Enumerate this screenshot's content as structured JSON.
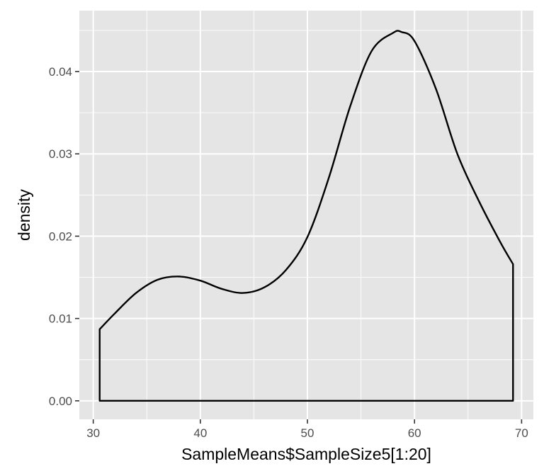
{
  "chart_data": {
    "type": "area",
    "geom": "density",
    "xlabel": "SampleMeans$SampleSize5[1:20]",
    "ylabel": "density",
    "xlim": [
      28.7,
      71.1
    ],
    "ylim": [
      -0.00225,
      0.0474
    ],
    "x_ticks": [
      30,
      40,
      50,
      60,
      70
    ],
    "x_tick_labels": [
      "30",
      "40",
      "50",
      "60",
      "70"
    ],
    "y_ticks": [
      0.0,
      0.01,
      0.02,
      0.03,
      0.04
    ],
    "y_tick_labels": [
      "0.00",
      "0.01",
      "0.02",
      "0.03",
      "0.04"
    ],
    "grid": true,
    "panel_background": "#e5e5e5",
    "grid_color": "#ffffff",
    "line_color": "#000000",
    "fill": "none",
    "series": [
      {
        "x": [
          30.6,
          32,
          34,
          36,
          38,
          40,
          42,
          44,
          46,
          48,
          50,
          52,
          54,
          56,
          58,
          58.8,
          60,
          62,
          64,
          66,
          68,
          69.2
        ],
        "y": [
          0.0087,
          0.0106,
          0.0131,
          0.0147,
          0.0151,
          0.0146,
          0.0136,
          0.0131,
          0.0138,
          0.0159,
          0.0199,
          0.0271,
          0.0358,
          0.0425,
          0.0447,
          0.0448,
          0.0437,
          0.0379,
          0.03,
          0.0243,
          0.0193,
          0.0166
        ]
      }
    ]
  }
}
